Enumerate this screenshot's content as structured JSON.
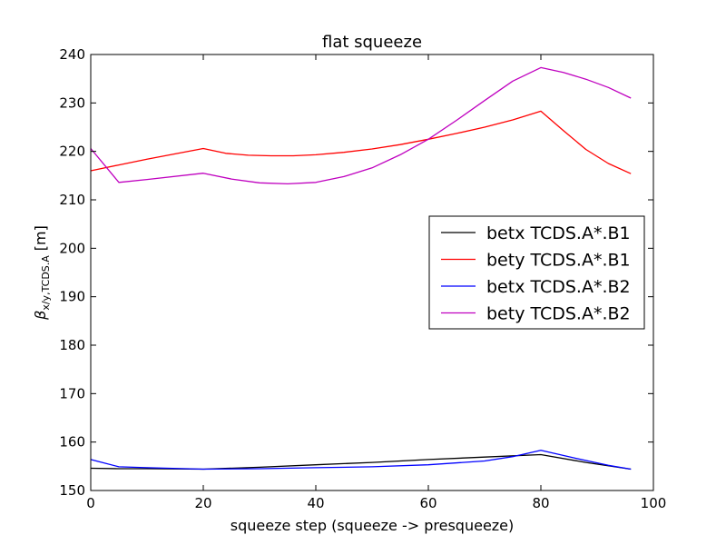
{
  "chart_data": {
    "type": "line",
    "title": "flat squeeze",
    "xlabel": "squeeze step (squeeze -> presqueeze)",
    "ylabel": "β_{x/y,TCDS.A} [m]",
    "ylabel_symbol": "β",
    "ylabel_subscript": "x/y,TCDS.A",
    "ylabel_unit": "[m]",
    "xlim": [
      0,
      100
    ],
    "ylim": [
      150,
      240
    ],
    "xticks": [
      0,
      20,
      40,
      60,
      80,
      100
    ],
    "yticks": [
      150,
      160,
      170,
      180,
      190,
      200,
      210,
      220,
      230,
      240
    ],
    "grid": false,
    "legend_position": "center-right",
    "series": [
      {
        "name": "betx TCDS.A*.B1",
        "color": "#000000",
        "x": [
          0,
          5,
          10,
          20,
          30,
          40,
          50,
          60,
          70,
          80,
          88,
          96
        ],
        "y": [
          154.6,
          154.5,
          154.5,
          154.4,
          154.8,
          155.3,
          155.8,
          156.4,
          156.9,
          157.4,
          155.8,
          154.4
        ]
      },
      {
        "name": "bety TCDS.A*.B1",
        "color": "#ff0000",
        "x": [
          0,
          5,
          10,
          20,
          24,
          28,
          32,
          36,
          40,
          45,
          50,
          55,
          60,
          65,
          70,
          75,
          80,
          84,
          88,
          92,
          96
        ],
        "y": [
          216.0,
          217.2,
          218.4,
          220.6,
          219.6,
          219.2,
          219.1,
          219.1,
          219.3,
          219.8,
          220.5,
          221.4,
          222.5,
          223.7,
          225.0,
          226.5,
          228.3,
          224.3,
          220.4,
          217.5,
          215.4
        ]
      },
      {
        "name": "betx TCDS.A*.B2",
        "color": "#0000ff",
        "x": [
          0,
          5,
          10,
          20,
          30,
          40,
          50,
          60,
          70,
          75,
          80,
          86,
          92,
          96
        ],
        "y": [
          156.4,
          154.9,
          154.7,
          154.4,
          154.5,
          154.7,
          154.9,
          155.3,
          156.1,
          157.0,
          158.3,
          156.7,
          155.2,
          154.4
        ]
      },
      {
        "name": "bety TCDS.A*.B2",
        "color": "#bf00bf",
        "x": [
          0,
          5,
          10,
          20,
          25,
          30,
          35,
          40,
          45,
          50,
          55,
          60,
          65,
          70,
          75,
          80,
          84,
          88,
          92,
          96
        ],
        "y": [
          220.6,
          213.6,
          214.2,
          215.5,
          214.3,
          213.5,
          213.3,
          213.6,
          214.8,
          216.6,
          219.3,
          222.5,
          226.4,
          230.5,
          234.5,
          237.3,
          236.3,
          234.9,
          233.2,
          231.0
        ]
      }
    ]
  }
}
